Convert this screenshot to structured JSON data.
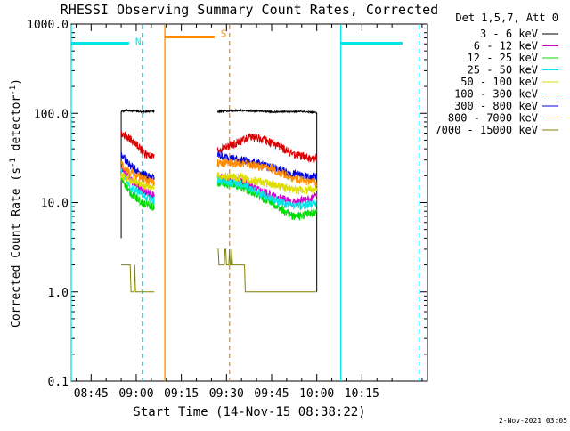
{
  "chart_data": {
    "type": "line",
    "title": "RHESSI Observing Summary Count Rates, Corrected",
    "xlabel": "Start Time (14-Nov-15 08:38:22)",
    "ylabel_main": "Corrected Count Rate (s",
    "ylabel_sup1": "-1",
    "ylabel_mid": " detector",
    "ylabel_sup2": "-1",
    "ylabel_end": ")",
    "ylog": true,
    "ylim": [
      0.1,
      1000
    ],
    "xlim_min": [
      38.4,
      156.8
    ],
    "yticks": [
      {
        "v": 1000,
        "label": "1000.0"
      },
      {
        "v": 100,
        "label": "100.0"
      },
      {
        "v": 10,
        "label": "10.0"
      },
      {
        "v": 1,
        "label": "1.0"
      },
      {
        "v": 0.1,
        "label": "0.1"
      }
    ],
    "xticks": [
      {
        "min": 45,
        "label": "08:45"
      },
      {
        "min": 60,
        "label": "09:00"
      },
      {
        "min": 75,
        "label": "09:15"
      },
      {
        "min": 90,
        "label": "09:30"
      },
      {
        "min": 105,
        "label": "09:45"
      },
      {
        "min": 120,
        "label": "10:00"
      },
      {
        "min": 135,
        "label": "10:15"
      }
    ],
    "legend_title": "Det 1,5,7, Att 0",
    "legend_position": "top-right",
    "series": [
      {
        "name": "3 - 6 keV",
        "color": "#000000",
        "seg1": [
          [
            55,
            105
          ],
          [
            57,
            108
          ],
          [
            62,
            104
          ],
          [
            66,
            106
          ]
        ],
        "seg2": [
          [
            87,
            105
          ],
          [
            95,
            108
          ],
          [
            105,
            104
          ],
          [
            115,
            105
          ],
          [
            120,
            102
          ]
        ]
      },
      {
        "name": "6 - 12 keV",
        "color": "#d400d4",
        "seg1": [
          [
            55,
            24
          ],
          [
            58,
            18
          ],
          [
            62,
            14
          ],
          [
            66,
            12
          ]
        ],
        "seg2": [
          [
            87,
            19
          ],
          [
            95,
            17
          ],
          [
            105,
            12
          ],
          [
            112,
            10
          ],
          [
            118,
            11
          ],
          [
            120,
            12
          ]
        ]
      },
      {
        "name": "12 - 25 keV",
        "color": "#00dd00",
        "seg1": [
          [
            55,
            19
          ],
          [
            58,
            13
          ],
          [
            62,
            10
          ],
          [
            66,
            9
          ]
        ],
        "seg2": [
          [
            87,
            17
          ],
          [
            95,
            15
          ],
          [
            105,
            10
          ],
          [
            112,
            7
          ],
          [
            118,
            7.5
          ],
          [
            120,
            8
          ]
        ]
      },
      {
        "name": "25 - 50 keV",
        "color": "#00e5e5",
        "seg1": [
          [
            55,
            22
          ],
          [
            58,
            15
          ],
          [
            62,
            12
          ],
          [
            66,
            10.5
          ]
        ],
        "seg2": [
          [
            87,
            18
          ],
          [
            95,
            16
          ],
          [
            105,
            11
          ],
          [
            112,
            9
          ],
          [
            118,
            9.5
          ],
          [
            120,
            10
          ]
        ]
      },
      {
        "name": "50 - 100 keV",
        "color": "#dddd00",
        "seg1": [
          [
            55,
            20
          ],
          [
            58,
            18
          ],
          [
            62,
            16
          ],
          [
            66,
            15
          ]
        ],
        "seg2": [
          [
            87,
            20
          ],
          [
            95,
            19
          ],
          [
            105,
            16
          ],
          [
            112,
            14
          ],
          [
            118,
            14
          ],
          [
            120,
            14.5
          ]
        ]
      },
      {
        "name": "100 - 300 keV",
        "color": "#dd0000",
        "seg1": [
          [
            55,
            60
          ],
          [
            57,
            55
          ],
          [
            60,
            45
          ],
          [
            63,
            35
          ],
          [
            66,
            32
          ]
        ],
        "seg2": [
          [
            87,
            38
          ],
          [
            92,
            45
          ],
          [
            98,
            55
          ],
          [
            103,
            50
          ],
          [
            108,
            42
          ],
          [
            112,
            35
          ],
          [
            118,
            31
          ],
          [
            120,
            32
          ]
        ]
      },
      {
        "name": "300 - 800 keV",
        "color": "#0000dd",
        "seg1": [
          [
            55,
            35
          ],
          [
            58,
            26
          ],
          [
            62,
            21
          ],
          [
            66,
            19
          ]
        ],
        "seg2": [
          [
            87,
            34
          ],
          [
            95,
            30
          ],
          [
            105,
            25
          ],
          [
            112,
            21
          ],
          [
            118,
            19
          ],
          [
            120,
            20
          ]
        ]
      },
      {
        "name": "800 - 7000 keV",
        "color": "#ff8c00",
        "seg1": [
          [
            55,
            27
          ],
          [
            58,
            22
          ],
          [
            62,
            19
          ],
          [
            66,
            17
          ]
        ],
        "seg2": [
          [
            87,
            28
          ],
          [
            95,
            28
          ],
          [
            105,
            24
          ],
          [
            112,
            19
          ],
          [
            118,
            17
          ],
          [
            120,
            17
          ]
        ]
      },
      {
        "name": "7000 - 15000 keV",
        "color": "#808000",
        "seg1": [
          [
            55,
            2
          ],
          [
            58,
            1.5
          ],
          [
            62,
            1
          ],
          [
            66,
            1
          ]
        ],
        "seg2": [
          [
            87,
            2.5
          ],
          [
            92,
            2.2
          ],
          [
            96,
            1.5
          ],
          [
            100,
            1.2
          ],
          [
            105,
            1
          ],
          [
            120,
            1
          ]
        ]
      }
    ],
    "flags": [
      {
        "label": "N",
        "color": "#00e5e5",
        "solid_start": 38.4,
        "solid_end": 57.6,
        "dash_end": 62.0
      },
      {
        "label": "S",
        "color": "#ff8c00",
        "solid_start": 69.5,
        "solid_end": 86.0,
        "dash_end": 91.0
      },
      {
        "label": "",
        "color": "#00e5e5",
        "solid_start": 128.0,
        "solid_end": 148.5,
        "dash_end": 154.0
      }
    ]
  },
  "footer_date": "2-Nov-2021 03:05"
}
